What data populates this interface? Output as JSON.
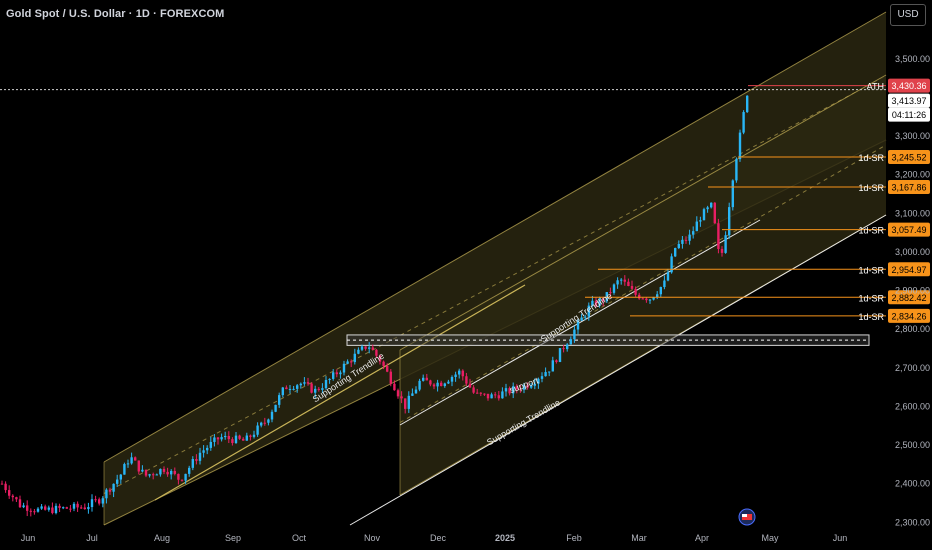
{
  "header": {
    "title": "Gold Spot / U.S. Dollar · 1D · FOREXCOM",
    "currency": "USD"
  },
  "colors": {
    "background": "#000000",
    "bullish": "#29b6f6",
    "bearish": "#e91e63",
    "channel_border": "#c9b458",
    "channel_fill": "#2a2710",
    "sr_line": "#f7931a",
    "ath_tag": "#e0424b",
    "zone_border": "#d8d8d8",
    "axis_text": "#b2b5be"
  },
  "chart_data": {
    "type": "candlestick",
    "title": "Gold Spot / U.S. Dollar · 1D · FOREXCOM",
    "x_ticks": [
      "Jun",
      "Jul",
      "Aug",
      "Sep",
      "Oct",
      "Nov",
      "Dec",
      "2025",
      "Feb",
      "Mar",
      "Apr",
      "May",
      "Jun"
    ],
    "y_ticks": [
      "3,500.00",
      "3,400.00",
      "3,300.00",
      "3,200.00",
      "3,100.00",
      "3,000.00",
      "2,900.00",
      "2,800.00",
      "2,700.00",
      "2,600.00",
      "2,500.00",
      "2,400.00",
      "2,300.00"
    ],
    "y_range": [
      2280,
      3590
    ],
    "price_tags": [
      {
        "label": "",
        "value": "3,430.36",
        "style": "ath"
      },
      {
        "label": "",
        "value": "3,413.97",
        "style": "last"
      },
      {
        "label": "",
        "value": "04:11:26",
        "style": "timer"
      }
    ],
    "levels": [
      {
        "label": "ATH",
        "value": "3,430.36"
      },
      {
        "label": "1d-SR",
        "value": "3,245.52"
      },
      {
        "label": "1d-SR",
        "value": "3,167.86"
      },
      {
        "label": "1d-SR",
        "value": "3,057.49"
      },
      {
        "label": "1d-SR",
        "value": "2,954.97"
      },
      {
        "label": "1d-SR",
        "value": "2,882.42"
      },
      {
        "label": "1d-SR",
        "value": "2,834.26"
      }
    ],
    "annotations": [
      "Supporting Trendline",
      "Supporting Trendline",
      "Supporting Trendline",
      "support"
    ],
    "zone": {
      "top": 2785,
      "bottom": 2758
    }
  }
}
